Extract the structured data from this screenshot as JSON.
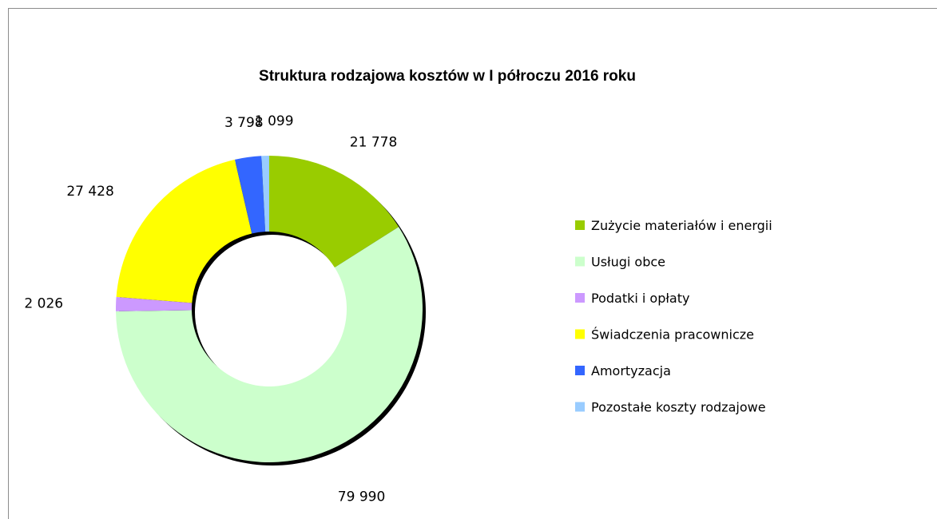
{
  "chart_data": {
    "type": "pie",
    "subtype": "doughnut",
    "title": "Struktura rodzajowa kosztów w I półroczu 2016 roku",
    "legend_position": "right",
    "slices": [
      {
        "label": "Zużycie materiałów i energii",
        "value": 21778,
        "display": "21 778",
        "color": "#99CC00"
      },
      {
        "label": "Usługi obce",
        "value": 79990,
        "display": "79 990",
        "color": "#CCFFCC"
      },
      {
        "label": "Podatki i opłaty",
        "value": 2026,
        "display": "2 026",
        "color": "#CC99FF"
      },
      {
        "label": "Świadczenia pracownicze",
        "value": 27428,
        "display": "27 428",
        "color": "#FFFF00"
      },
      {
        "label": "Amortyzacja",
        "value": 3798,
        "display": "3 798",
        "color": "#3366FF"
      },
      {
        "label": "Pozostałe koszty rodzajowe",
        "value": 1099,
        "display": "1 099",
        "color": "#99CCFF"
      }
    ]
  }
}
